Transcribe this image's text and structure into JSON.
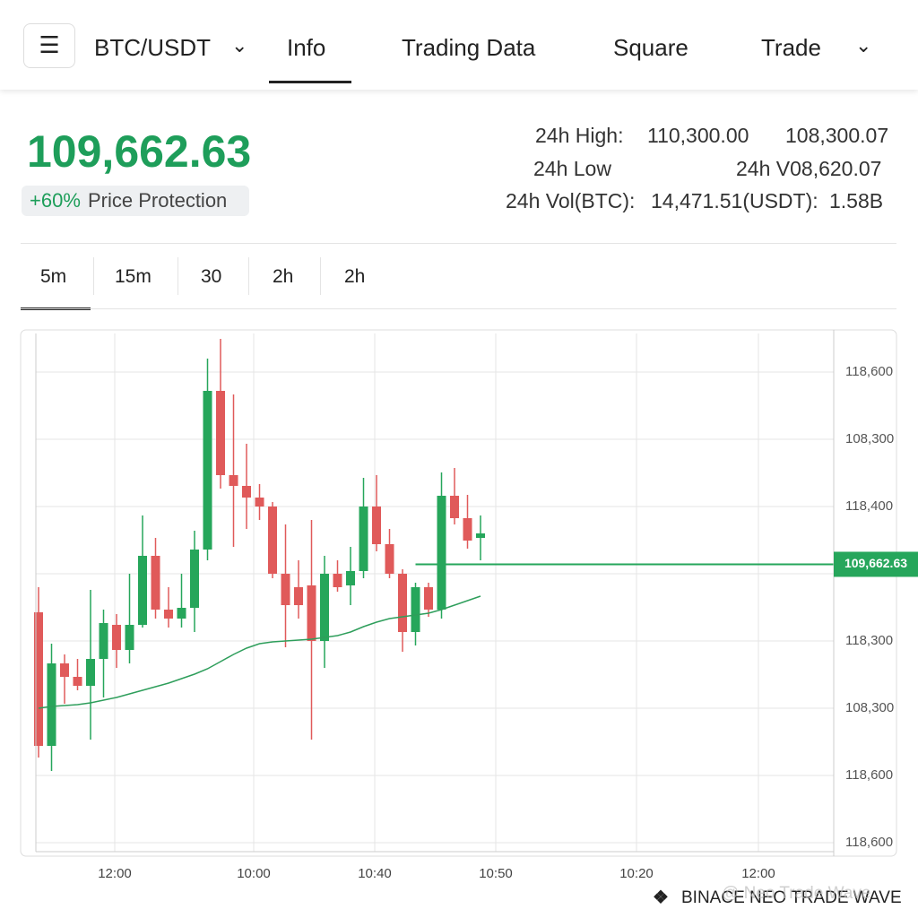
{
  "header": {
    "symbol": "BTC/USDT",
    "tabs": [
      "Info",
      "Trading Data",
      "Square",
      "Trade"
    ]
  },
  "ticker": {
    "price": "109,662.63",
    "change": "+60%",
    "badge": "Price Protection",
    "stats": [
      [
        "24h High:",
        "110,300.00",
        "108,300.07"
      ],
      [
        "24h Low",
        "24h V08,620.07"
      ],
      [
        "24h Vol(BTC):",
        "14,471.51(USDT):",
        "1.58B"
      ]
    ]
  },
  "intervals": [
    "5m",
    "15m",
    "30",
    "2h",
    "2h"
  ],
  "chart_data": {
    "type": "candlestick",
    "up_color": "#26a65b",
    "down_color": "#e05a5a",
    "ylim": [
      108060,
      110960
    ],
    "y_axis_labels": [
      "118,600",
      "108,300",
      "118,400",
      null,
      "118,300",
      "108,300",
      "118,600",
      "118,600"
    ],
    "x_axis_labels": [
      "12:00",
      "10:00",
      "10:40",
      "10:50",
      "10:20",
      "12:00"
    ],
    "grid": true,
    "open": [
      109395,
      108650,
      109110,
      109035,
      108985,
      109135,
      109325,
      109185,
      109325,
      109710,
      109410,
      109360,
      109420,
      109745,
      110630,
      110160,
      110100,
      110035,
      109985,
      109610,
      109535,
      109545,
      109235,
      109610,
      109545,
      109625,
      109985,
      109775,
      109610,
      109285,
      109535,
      109410,
      110045,
      109920,
      109810
    ],
    "high": [
      109535,
      109220,
      109160,
      109135,
      109520,
      109410,
      109385,
      109610,
      109935,
      109810,
      109535,
      109610,
      109850,
      110810,
      110920,
      110610,
      110335,
      110110,
      110010,
      109885,
      109685,
      109910,
      109710,
      109685,
      109760,
      110145,
      110160,
      109860,
      109635,
      109560,
      109560,
      110175,
      110200,
      110050,
      109935
    ],
    "low": [
      108585,
      108510,
      108885,
      108960,
      108685,
      108920,
      109085,
      109110,
      109310,
      109360,
      109310,
      109310,
      109285,
      109685,
      110085,
      109760,
      109860,
      109910,
      109585,
      109200,
      109360,
      108685,
      109085,
      109510,
      109435,
      109585,
      109735,
      109585,
      109175,
      109210,
      109370,
      109360,
      109885,
      109750,
      109685
    ],
    "close": [
      108650,
      109110,
      109035,
      108985,
      109135,
      109335,
      109185,
      109325,
      109710,
      109410,
      109360,
      109420,
      109745,
      110630,
      110160,
      110100,
      110035,
      109985,
      109610,
      109435,
      109435,
      109235,
      109610,
      109535,
      109625,
      109985,
      109775,
      109610,
      109285,
      109535,
      109410,
      110045,
      109920,
      109795,
      109835
    ],
    "ma": {
      "color": "#2e9e5b",
      "values": [
        108860,
        108870,
        108875,
        108880,
        108890,
        108905,
        108920,
        108940,
        108960,
        108980,
        109000,
        109025,
        109050,
        109080,
        109120,
        109160,
        109195,
        109220,
        109230,
        109235,
        109240,
        109245,
        109255,
        109265,
        109285,
        109315,
        109340,
        109360,
        109370,
        109380,
        109390,
        109410,
        109435,
        109460,
        109485
      ]
    },
    "last_price": {
      "value": 109662.63,
      "label": "109,662.63"
    }
  },
  "watermark": [
    "BINACE NEO TRADE WAVE",
    "@ Neo Trade Wave"
  ]
}
